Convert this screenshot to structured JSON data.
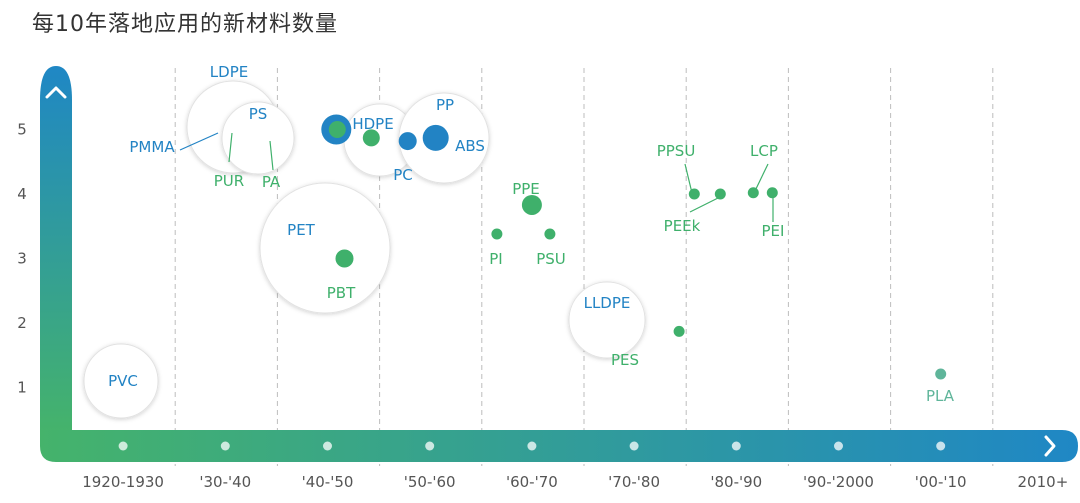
{
  "chart_data": {
    "type": "scatter",
    "title": "每10年落地应用的新材料数量",
    "categories": [
      "1920-1930",
      "'30-'40",
      "'40-'50",
      "'50-'60",
      "'60-'70",
      "'70-'80",
      "'80-'90",
      "'90-'2000",
      "'00-'10",
      "2010+"
    ],
    "y_ticks": [
      "1",
      "2",
      "3",
      "4",
      "5"
    ],
    "ylim": [
      0,
      5.8
    ],
    "grid": "vertical dashed lines between decades",
    "colors": {
      "blue": "#2283c4",
      "green": "#3fb06b",
      "axis_from": "#45b36b",
      "axis_to": "#1f87c5",
      "teal": "#5fb59a"
    },
    "points": [
      {
        "id": "pvc",
        "name": "PVC",
        "decade": 0,
        "value": 1.0,
        "material_class": "plastic",
        "color": "blue"
      },
      {
        "id": "ldpe",
        "name": "LDPE",
        "decade": 1,
        "value": 5.0,
        "material_class": "plastic",
        "color": "blue"
      },
      {
        "id": "pmma",
        "name": "PMMA",
        "decade": 1,
        "value": 5.0,
        "material_class": "plastic",
        "color": "blue"
      },
      {
        "id": "ps",
        "name": "PS",
        "decade": 1,
        "value": 5.0,
        "material_class": "plastic",
        "color": "blue"
      },
      {
        "id": "pur",
        "name": "PUR",
        "decade": 1,
        "value": 5.0,
        "material_class": "plastic",
        "color": "green"
      },
      {
        "id": "pa",
        "name": "PA",
        "decade": 1,
        "value": 5.0,
        "material_class": "plastic",
        "color": "green"
      },
      {
        "id": "pet",
        "name": "PET",
        "decade": 2,
        "value": 3.0,
        "material_class": "plastic",
        "color": "blue"
      },
      {
        "id": "pbt",
        "name": "PBT",
        "decade": 2,
        "value": 3.0,
        "material_class": "plastic",
        "color": "green"
      },
      {
        "id": "hdpe",
        "name": "HDPE",
        "decade": 3,
        "value": 4.8,
        "material_class": "plastic",
        "color": "blue"
      },
      {
        "id": "pc",
        "name": "PC",
        "decade": 3,
        "value": 4.8,
        "material_class": "plastic",
        "color": "blue"
      },
      {
        "id": "pp",
        "name": "PP",
        "decade": 3,
        "value": 4.8,
        "material_class": "plastic",
        "color": "blue"
      },
      {
        "id": "abs",
        "name": "ABS",
        "decade": 3,
        "value": 4.8,
        "material_class": "plastic",
        "color": "blue"
      },
      {
        "id": "ppe",
        "name": "PPE",
        "decade": 4,
        "value": 3.8,
        "material_class": "specialty",
        "color": "green"
      },
      {
        "id": "pi",
        "name": "PI",
        "decade": 4,
        "value": 3.4,
        "material_class": "specialty",
        "color": "green"
      },
      {
        "id": "psu",
        "name": "PSU",
        "decade": 4,
        "value": 3.4,
        "material_class": "specialty",
        "color": "green"
      },
      {
        "id": "lldpe",
        "name": "LLDPE",
        "decade": 5,
        "value": 1.9,
        "material_class": "plastic",
        "color": "blue"
      },
      {
        "id": "pes",
        "name": "PES",
        "decade": 5,
        "value": 1.9,
        "material_class": "specialty",
        "color": "green"
      },
      {
        "id": "ppsu",
        "name": "PPSU",
        "decade": 6,
        "value": 4.0,
        "material_class": "specialty",
        "color": "green"
      },
      {
        "id": "peek",
        "name": "PEEk",
        "decade": 6,
        "value": 4.0,
        "material_class": "specialty",
        "color": "green"
      },
      {
        "id": "lcp",
        "name": "LCP",
        "decade": 6,
        "value": 4.0,
        "material_class": "specialty",
        "color": "green"
      },
      {
        "id": "pei",
        "name": "PEI",
        "decade": 6,
        "value": 4.0,
        "material_class": "specialty",
        "color": "green"
      },
      {
        "id": "pla",
        "name": "PLA",
        "decade": 8,
        "value": 1.2,
        "material_class": "bio",
        "color": "teal"
      }
    ]
  }
}
